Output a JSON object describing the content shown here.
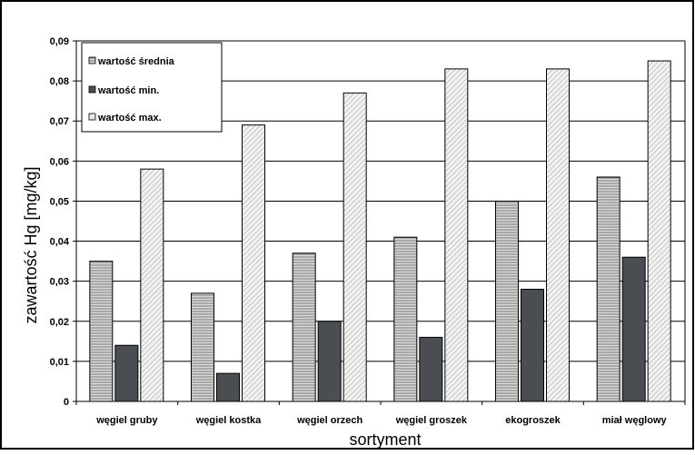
{
  "chart_data": {
    "type": "bar",
    "categories": [
      "węgiel gruby",
      "węgiel kostka",
      "węgiel orzech",
      "węgiel groszek",
      "ekogroszek",
      "miał węglowy"
    ],
    "series": [
      {
        "name": "wartość średnia",
        "values": [
          0.035,
          0.027,
          0.037,
          0.041,
          0.05,
          0.056
        ],
        "pattern": "horizontal-hatch-gray"
      },
      {
        "name": "wartość min.",
        "values": [
          0.014,
          0.007,
          0.02,
          0.016,
          0.028,
          0.036
        ],
        "pattern": "solid-dark-gray"
      },
      {
        "name": "wartość max.",
        "values": [
          0.058,
          0.069,
          0.077,
          0.083,
          0.083,
          0.085
        ],
        "pattern": "diagonal-hatch-light"
      }
    ],
    "title": "",
    "xlabel": "sortyment",
    "ylabel": "zawartość  Hg  [mg/kg]",
    "ylim": [
      0,
      0.09
    ],
    "yticks": [
      "0",
      "0,01",
      "0,02",
      "0,03",
      "0,04",
      "0,05",
      "0,06",
      "0,07",
      "0,08",
      "0,09"
    ],
    "grid": "horizontal",
    "legend_position": "top-left"
  },
  "colors": {
    "grid": "#000000",
    "solid_dark": "#4a4e52",
    "hatch_mid": "#8a8a8a",
    "hatch_light": "#bdbdbd"
  }
}
